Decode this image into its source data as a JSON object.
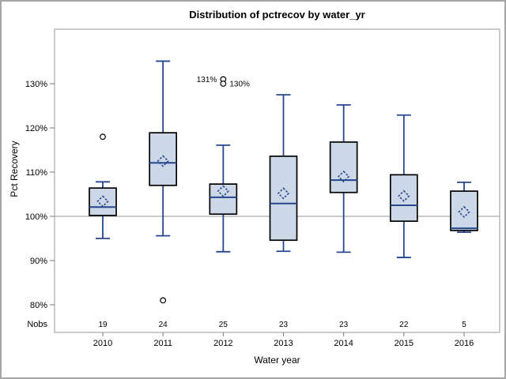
{
  "chart_data": {
    "type": "boxplot",
    "title": "Distribution of pctrecov by water_yr",
    "xlabel": "Water year",
    "ylabel": "Pct Recovery",
    "nobs_label": "Nobs",
    "categories": [
      "2010",
      "2011",
      "2012",
      "2013",
      "2014",
      "2015",
      "2016"
    ],
    "nobs": [
      19,
      24,
      25,
      23,
      23,
      22,
      5
    ],
    "y_ticks": [
      80,
      90,
      100,
      110,
      120,
      130
    ],
    "y_tick_suffix": "%",
    "ylim": [
      73.5,
      142.5
    ],
    "reference_line": 100,
    "grid": "off",
    "boxes": [
      {
        "category": "2010",
        "whisker_low": 95.0,
        "q1": 100.2,
        "median": 102.1,
        "q3": 106.4,
        "whisker_high": 107.8,
        "mean": 103.4,
        "outliers": [
          {
            "value": 118
          }
        ]
      },
      {
        "category": "2011",
        "whisker_low": 95.6,
        "q1": 107.0,
        "median": 112.1,
        "q3": 118.9,
        "whisker_high": 135.1,
        "mean": 112.5,
        "outliers": [
          {
            "value": 81
          }
        ]
      },
      {
        "category": "2012",
        "whisker_low": 92.0,
        "q1": 100.5,
        "median": 104.3,
        "q3": 107.3,
        "whisker_high": 116.1,
        "mean": 105.7,
        "outliers": [
          {
            "value": 131,
            "label": "131%",
            "label_side": "left"
          },
          {
            "value": 130,
            "label": "130%",
            "label_side": "right"
          }
        ]
      },
      {
        "category": "2013",
        "whisker_low": 92.1,
        "q1": 94.6,
        "median": 102.9,
        "q3": 113.6,
        "whisker_high": 127.5,
        "mean": 105.2,
        "outliers": []
      },
      {
        "category": "2014",
        "whisker_low": 91.9,
        "q1": 105.4,
        "median": 108.2,
        "q3": 116.8,
        "whisker_high": 125.2,
        "mean": 109.0,
        "outliers": []
      },
      {
        "category": "2015",
        "whisker_low": 90.7,
        "q1": 98.9,
        "median": 102.5,
        "q3": 109.4,
        "whisker_high": 122.9,
        "mean": 104.6,
        "outliers": []
      },
      {
        "category": "2016",
        "whisker_low": 96.4,
        "q1": 96.8,
        "median": 97.3,
        "q3": 105.7,
        "whisker_high": 107.7,
        "mean": 101.0,
        "outliers": []
      }
    ],
    "colors": {
      "box_fill": "#ccd7e8",
      "box_border": "#000000",
      "line": "#26478d",
      "reference_line": "#ababab",
      "axis": "#999999",
      "tick": "#777777",
      "text": "#000000",
      "figure_border": "#a6a6a6"
    }
  }
}
